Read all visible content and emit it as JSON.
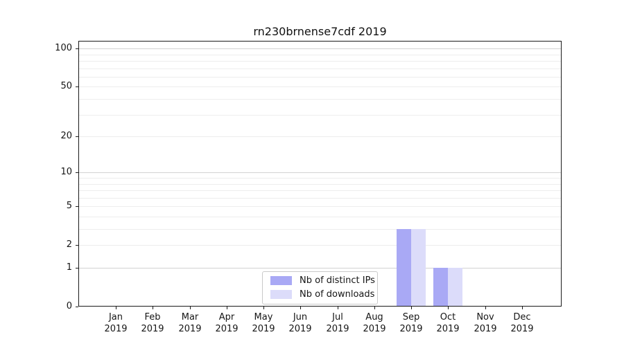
{
  "chart_data": {
    "type": "bar",
    "title": "rn230brnense7cdf 2019",
    "categories": [
      "Jan",
      "Feb",
      "Mar",
      "Apr",
      "May",
      "Jun",
      "Jul",
      "Aug",
      "Sep",
      "Oct",
      "Nov",
      "Dec"
    ],
    "x_year_label": "2019",
    "series": [
      {
        "name": "Nb of distinct IPs",
        "color": "#a9a9f5",
        "values": [
          0,
          0,
          0,
          0,
          0,
          0,
          0,
          0,
          3,
          1,
          0,
          0
        ]
      },
      {
        "name": "Nb of downloads",
        "color": "#dcdcfa",
        "values": [
          0,
          0,
          0,
          0,
          0,
          0,
          0,
          0,
          3,
          1,
          0,
          0
        ]
      }
    ],
    "xlabel": "",
    "ylabel": "",
    "yscale": "log1p",
    "ylim": [
      0,
      115
    ],
    "yticks": [
      0,
      1,
      2,
      5,
      10,
      20,
      50,
      100
    ],
    "grid": "horizontal",
    "grid_major_values": [
      1,
      10,
      100
    ],
    "grid_minor_values": [
      2,
      3,
      4,
      5,
      6,
      7,
      8,
      9,
      20,
      30,
      40,
      50,
      60,
      70,
      80,
      90
    ],
    "grid_color_major": "#d2d2d2",
    "grid_color_minor": "#ededed",
    "legend_position": "lower-center-inside"
  }
}
